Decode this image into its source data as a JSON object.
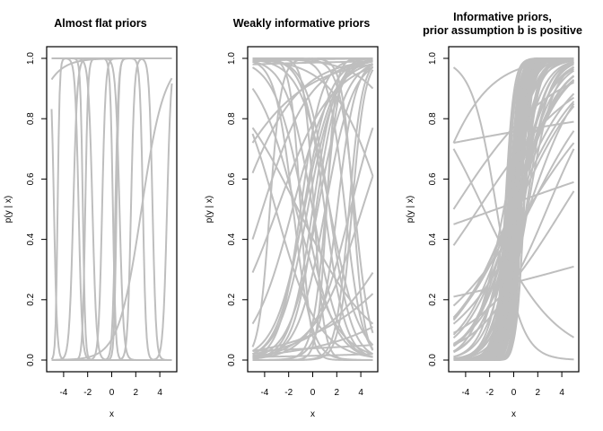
{
  "chart_data": [
    {
      "type": "line",
      "title": "Almost flat priors",
      "xlabel": "x",
      "ylabel": "p(y | x)",
      "xlim": [
        -5,
        5
      ],
      "ylim": [
        0,
        1
      ],
      "xticks": [
        "-4",
        "-2",
        "0",
        "2",
        "4"
      ],
      "yticks": [
        "0.0",
        "0.2",
        "0.4",
        "0.6",
        "0.8",
        "1.0"
      ],
      "grid": false,
      "line_color": "#bebebe",
      "series": [
        {
          "name": "sample curves (logistic with very steep slopes)",
          "note": "Many near-step curves switching between 0 and 1 at x ≈ -4.8, -3.2, -2.7, -2.2, -1.6, -0.8, 0.1, 0.3, 0.6, 1.6, 2.6, 4.5; one gentle curve rising from 0 at x≈-0.5 to 0.93 at x=5; curves saturated at 0.0 and 1.0 across the range"
        }
      ]
    },
    {
      "type": "line",
      "title": "Weakly informative priors",
      "xlabel": "x",
      "ylabel": "p(y | x)",
      "xlim": [
        -5,
        5
      ],
      "ylim": [
        0,
        1
      ],
      "xticks": [
        "-4",
        "-2",
        "0",
        "2",
        "4"
      ],
      "yticks": [
        "0.0",
        "0.2",
        "0.4",
        "0.6",
        "0.8",
        "1.0"
      ],
      "grid": false,
      "line_color": "#bebebe",
      "series": [
        {
          "name": "sample curves (logistic, moderate slopes)",
          "note": "Dozens of sigmoid curves, both increasing and decreasing, spanning 0 to 1 across x in [-5, 5]; left-end values include ~0.99, 0.9, 0.77, 0.72, 0.62, 0.4, 0.29, 0.03; right-end values include ~0.98, 0.77, 0.61, 0.29, 0.22, 0.11, 0.05, 0.01"
        }
      ]
    },
    {
      "type": "line",
      "title": "Informative priors,\nprior assumption b is positive",
      "xlabel": "x",
      "ylabel": "p(y | x)",
      "xlim": [
        -5,
        5
      ],
      "ylim": [
        0,
        1
      ],
      "xticks": [
        "-4",
        "-2",
        "0",
        "2",
        "4"
      ],
      "yticks": [
        "0.0",
        "0.2",
        "0.4",
        "0.6",
        "0.8",
        "1.0"
      ],
      "grid": false,
      "line_color": "#bebebe",
      "series": [
        {
          "name": "sample curves (logistic, mostly positive slopes centered near x=0)",
          "note": "Dense bundle of steep increasing sigmoids crossing 0.5 at x≈0; several shallower increasing lines (left→right ≈ 0.72→0.79, 0.45→0.59, 0.21→0.31, 0.5→0.92, 0.38→0.87); a few decreasing curves (0.97→0.0, 0.70→0.07)"
        }
      ]
    }
  ],
  "panels": [
    {
      "title_line1": "Almost flat priors",
      "title_line2": "",
      "xlabel": "x",
      "ylabel": "p(y | x)"
    },
    {
      "title_line1": "Weakly informative priors",
      "title_line2": "",
      "xlabel": "x",
      "ylabel": "p(y | x)"
    },
    {
      "title_line1": "Informative priors,",
      "title_line2": "prior assumption b is positive",
      "xlabel": "x",
      "ylabel": "p(y | x)"
    }
  ],
  "axes": {
    "xticks": [
      "-4",
      "-2",
      "0",
      "2",
      "4"
    ],
    "yticks": [
      "0.0",
      "0.2",
      "0.4",
      "0.6",
      "0.8",
      "1.0"
    ]
  },
  "colors": {
    "line": "#bebebe",
    "axis": "#000000",
    "background": "#ffffff"
  }
}
